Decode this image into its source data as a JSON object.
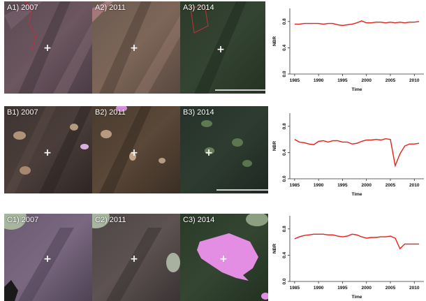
{
  "rows": [
    {
      "id": "A",
      "tiles": [
        {
          "label": "A1) 2007",
          "palette": "purple-pink"
        },
        {
          "label": "A2) 2011",
          "palette": "brown-pink"
        },
        {
          "label": "A3) 2014",
          "palette": "dark-green"
        }
      ],
      "chart_data": {
        "type": "line",
        "x": [
          1985,
          1986,
          1987,
          1988,
          1989,
          1990,
          1991,
          1992,
          1993,
          1994,
          1995,
          1996,
          1997,
          1998,
          1999,
          2000,
          2001,
          2002,
          2003,
          2004,
          2005,
          2006,
          2007,
          2008,
          2009,
          2010,
          2011
        ],
        "series": [
          {
            "values": [
              0.76,
              0.76,
              0.77,
              0.77,
              0.77,
              0.77,
              0.76,
              0.77,
              0.77,
              0.75,
              0.74,
              0.75,
              0.76,
              0.78,
              0.81,
              0.78,
              0.78,
              0.79,
              0.79,
              0.78,
              0.79,
              0.78,
              0.79,
              0.78,
              0.79,
              0.79,
              0.8
            ],
            "color": "#e8201a"
          }
        ],
        "xlabel": "Time",
        "ylabel": "NBR",
        "xticks": [
          "1985",
          "1990",
          "1995",
          "2000",
          "2005",
          "2010"
        ],
        "yticks": [
          "0.0",
          "0.4",
          "0.8"
        ],
        "xlim": [
          1984,
          2012
        ],
        "ylim": [
          0,
          1.0
        ]
      }
    },
    {
      "id": "B",
      "tiles": [
        {
          "label": "B1) 2007",
          "palette": "purple-brown"
        },
        {
          "label": "B2) 2011",
          "palette": "brown"
        },
        {
          "label": "B3) 2014",
          "palette": "dark-green"
        }
      ],
      "chart_data": {
        "type": "line",
        "x": [
          1985,
          1986,
          1987,
          1988,
          1989,
          1990,
          1991,
          1992,
          1993,
          1994,
          1995,
          1996,
          1997,
          1998,
          1999,
          2000,
          2001,
          2002,
          2003,
          2004,
          2005,
          2006,
          2007,
          2008,
          2009,
          2010,
          2011
        ],
        "series": [
          {
            "values": [
              0.6,
              0.56,
              0.55,
              0.53,
              0.52,
              0.57,
              0.58,
              0.56,
              0.58,
              0.58,
              0.56,
              0.56,
              0.53,
              0.54,
              0.57,
              0.59,
              0.59,
              0.6,
              0.59,
              0.61,
              0.6,
              0.2,
              0.38,
              0.5,
              0.53,
              0.53,
              0.54
            ],
            "color": "#e8201a"
          }
        ],
        "xlabel": "Time",
        "ylabel": "NBR",
        "xticks": [
          "1985",
          "1990",
          "1995",
          "2000",
          "2005",
          "2010"
        ],
        "yticks": [
          "0.0",
          "0.4",
          "0.8"
        ],
        "xlim": [
          1984,
          2012
        ],
        "ylim": [
          0,
          1.0
        ]
      }
    },
    {
      "id": "C",
      "tiles": [
        {
          "label": "C1) 2007",
          "palette": "purple"
        },
        {
          "label": "C2) 2011",
          "palette": "purple-dark"
        },
        {
          "label": "C3) 2014",
          "palette": "dark-green-pink"
        }
      ],
      "chart_data": {
        "type": "line",
        "x": [
          1985,
          1986,
          1987,
          1988,
          1989,
          1990,
          1991,
          1992,
          1993,
          1994,
          1995,
          1996,
          1997,
          1998,
          1999,
          2000,
          2001,
          2002,
          2003,
          2004,
          2005,
          2006,
          2007,
          2008,
          2009,
          2010,
          2011
        ],
        "series": [
          {
            "values": [
              0.65,
              0.68,
              0.7,
              0.71,
              0.72,
              0.72,
              0.72,
              0.71,
              0.71,
              0.69,
              0.68,
              0.69,
              0.72,
              0.71,
              0.68,
              0.66,
              0.67,
              0.67,
              0.68,
              0.68,
              0.69,
              0.66,
              0.5,
              0.57,
              0.57,
              0.57,
              0.57
            ],
            "color": "#e8201a"
          }
        ],
        "xlabel": "Time",
        "ylabel": "NBR",
        "xticks": [
          "1985",
          "1990",
          "1995",
          "2000",
          "2005",
          "2010"
        ],
        "yticks": [
          "0.0",
          "0.4",
          "0.8"
        ],
        "xlim": [
          1984,
          2012
        ],
        "ylim": [
          0,
          1.0
        ]
      }
    }
  ],
  "colors": {
    "line": "#e8201a",
    "crosshair": "#ffffff",
    "mask_pink": "#e38ee3"
  }
}
